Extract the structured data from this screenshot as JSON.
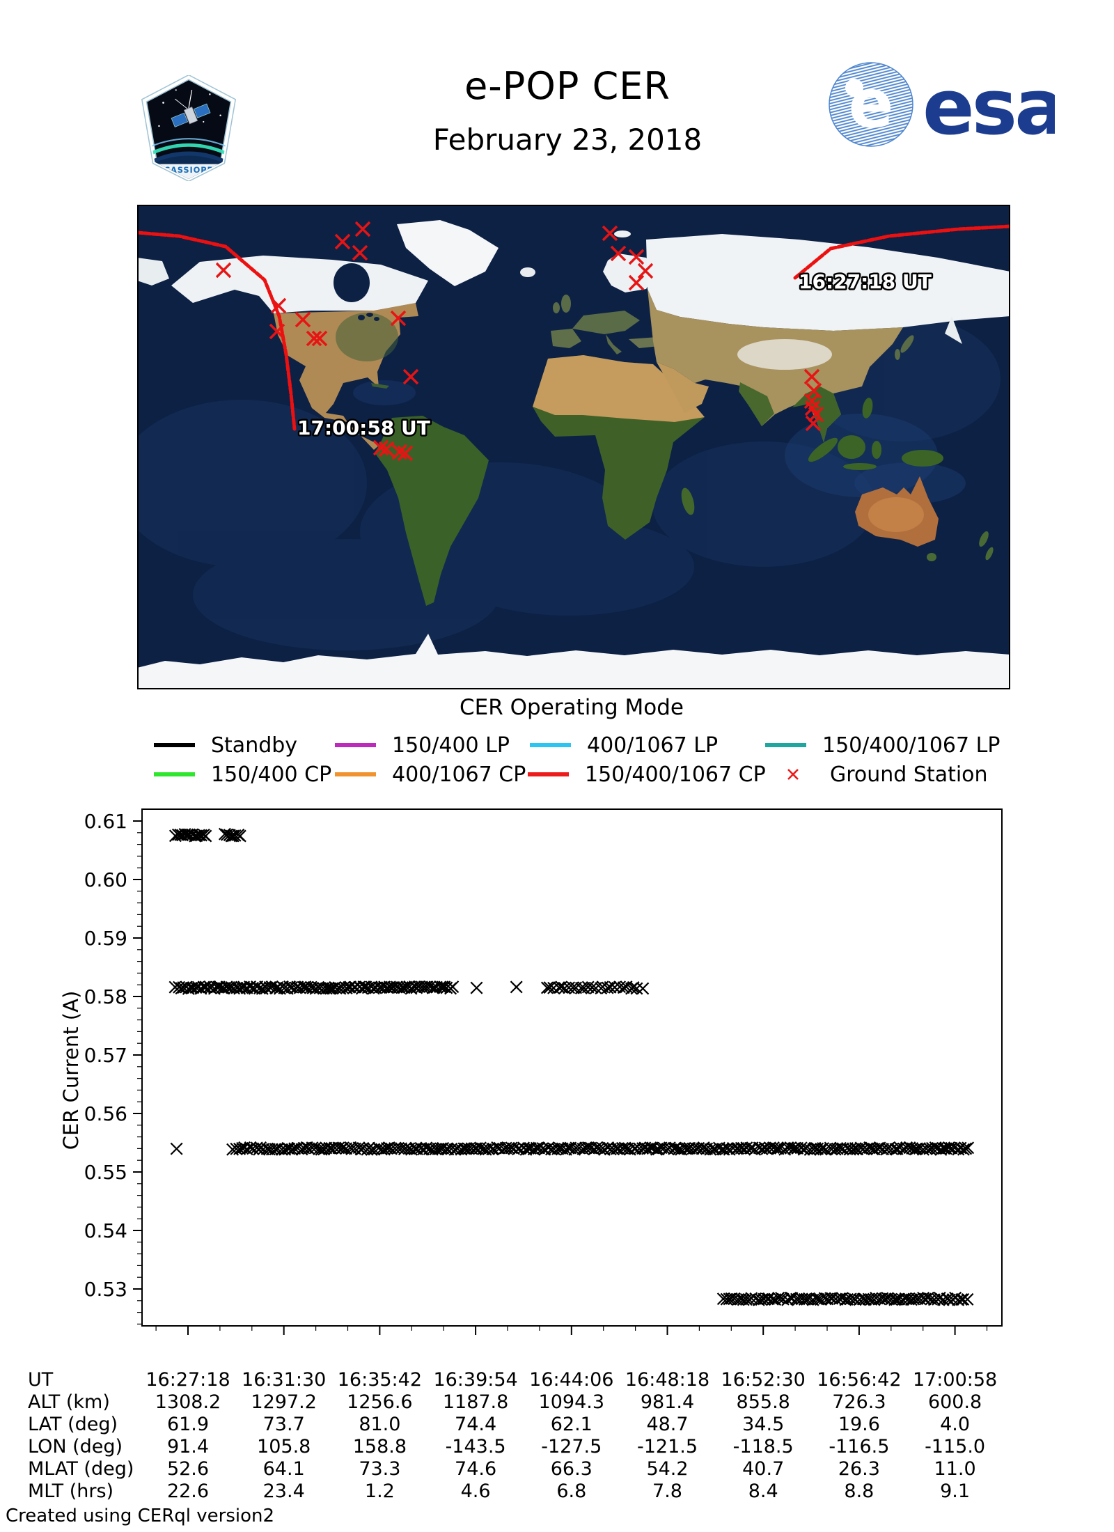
{
  "header": {
    "title": "e-POP CER",
    "date": "February 23, 2018",
    "patch_text": "CASSIOPE",
    "esa_wordmark": "esa"
  },
  "map": {
    "start_label": "16:27:18 UT",
    "end_label": "17:00:58 UT",
    "track_color": "#ed1010",
    "station_color": "#e81414",
    "track_end_points": [
      [
        0,
        40
      ],
      [
        60,
        45
      ],
      [
        127,
        60
      ],
      [
        183,
        108
      ],
      [
        204,
        160
      ],
      [
        214,
        215
      ],
      [
        221,
        272
      ],
      [
        226,
        322
      ]
    ],
    "track_start_points": [
      [
        945,
        105
      ],
      [
        996,
        63
      ],
      [
        1080,
        45
      ],
      [
        1180,
        35
      ],
      [
        1254,
        31
      ]
    ],
    "ground_stations": [
      [
        324,
        35
      ],
      [
        295,
        53
      ],
      [
        320,
        69
      ],
      [
        124,
        94
      ],
      [
        203,
        145
      ],
      [
        238,
        165
      ],
      [
        201,
        182
      ],
      [
        254,
        192
      ],
      [
        262,
        192
      ],
      [
        375,
        163
      ],
      [
        393,
        247
      ],
      [
        350,
        349
      ],
      [
        358,
        351
      ],
      [
        377,
        355
      ],
      [
        385,
        357
      ],
      [
        679,
        41
      ],
      [
        691,
        70
      ],
      [
        717,
        75
      ],
      [
        730,
        95
      ],
      [
        717,
        112
      ],
      [
        969,
        247
      ],
      [
        972,
        267
      ],
      [
        969,
        282
      ],
      [
        970,
        292
      ],
      [
        975,
        301
      ],
      [
        971,
        314
      ]
    ]
  },
  "legend": {
    "title": "CER Operating Mode",
    "items": [
      {
        "label": "Standby",
        "color": "#000000",
        "type": "line"
      },
      {
        "label": "150/400 LP",
        "color": "#bc2abc",
        "type": "line"
      },
      {
        "label": "400/1067 LP",
        "color": "#2cc5f2",
        "type": "line"
      },
      {
        "label": "150/400/1067 LP",
        "color": "#1fa79f",
        "type": "line"
      },
      {
        "label": "150/400 CP",
        "color": "#2de62d",
        "type": "line"
      },
      {
        "label": "400/1067 CP",
        "color": "#f0922d",
        "type": "line"
      },
      {
        "label": "150/400/1067 CP",
        "color": "#ed1c1c",
        "type": "line"
      },
      {
        "label": "Ground Station",
        "color": "#ed1c1c",
        "type": "marker"
      }
    ]
  },
  "chart_data": {
    "type": "scatter",
    "title": "",
    "xlabel": "UT",
    "ylabel": "CER Current (A)",
    "marker": "x",
    "marker_color": "#000000",
    "ylim": [
      0.5237,
      0.612
    ],
    "yticks": [
      0.61,
      0.6,
      0.59,
      0.58,
      0.57,
      0.56,
      0.55,
      0.54,
      0.53
    ],
    "xticklabels": [
      "16:27:18",
      "16:31:30",
      "16:35:42",
      "16:39:54",
      "16:44:06",
      "16:48:18",
      "16:52:30",
      "16:56:42",
      "17:00:58"
    ],
    "x_unit": "seconds since 16:27:18 UT",
    "x_tick_interval_s": 252.5,
    "series": [
      {
        "name": "current level 0.6076 A",
        "value": 0.6076,
        "segments": [
          {
            "t0": -35,
            "t1": 50,
            "n": 14
          },
          {
            "t0": 95,
            "t1": 140,
            "n": 8
          }
        ],
        "singles": []
      },
      {
        "name": "current level 0.5815 A",
        "value": 0.5815,
        "segments": [
          {
            "t0": -35,
            "t1": 700,
            "n": 110
          },
          {
            "t0": 940,
            "t1": 1200,
            "n": 26
          }
        ],
        "singles": [
          760,
          865
        ]
      },
      {
        "name": "current level 0.5540 A",
        "value": 0.554,
        "segments": [
          {
            "t0": 115,
            "t1": 2060,
            "n": 260
          }
        ],
        "singles": [
          -30
        ]
      },
      {
        "name": "current level 0.5283 A",
        "value": 0.5283,
        "segments": [
          {
            "t0": 1405,
            "t1": 2055,
            "n": 85
          }
        ],
        "singles": []
      }
    ]
  },
  "table": {
    "rows": [
      {
        "label": "UT",
        "values": [
          "16:27:18",
          "16:31:30",
          "16:35:42",
          "16:39:54",
          "16:44:06",
          "16:48:18",
          "16:52:30",
          "16:56:42",
          "17:00:58"
        ]
      },
      {
        "label": "ALT (km)",
        "values": [
          "1308.2",
          "1297.2",
          "1256.6",
          "1187.8",
          "1094.3",
          "981.4",
          "855.8",
          "726.3",
          "600.8"
        ]
      },
      {
        "label": "LAT (deg)",
        "values": [
          "61.9",
          "73.7",
          "81.0",
          "74.4",
          "62.1",
          "48.7",
          "34.5",
          "19.6",
          "4.0"
        ]
      },
      {
        "label": "LON (deg)",
        "values": [
          "91.4",
          "105.8",
          "158.8",
          "-143.5",
          "-127.5",
          "-121.5",
          "-118.5",
          "-116.5",
          "-115.0"
        ]
      },
      {
        "label": "MLAT (deg)",
        "values": [
          "52.6",
          "64.1",
          "73.3",
          "74.6",
          "66.3",
          "54.2",
          "40.7",
          "26.3",
          "11.0"
        ]
      },
      {
        "label": "MLT (hrs)",
        "values": [
          "22.6",
          "23.4",
          "1.2",
          "4.6",
          "6.8",
          "7.8",
          "8.4",
          "8.8",
          "9.1"
        ]
      }
    ]
  },
  "footer": "Created using CERql version2"
}
